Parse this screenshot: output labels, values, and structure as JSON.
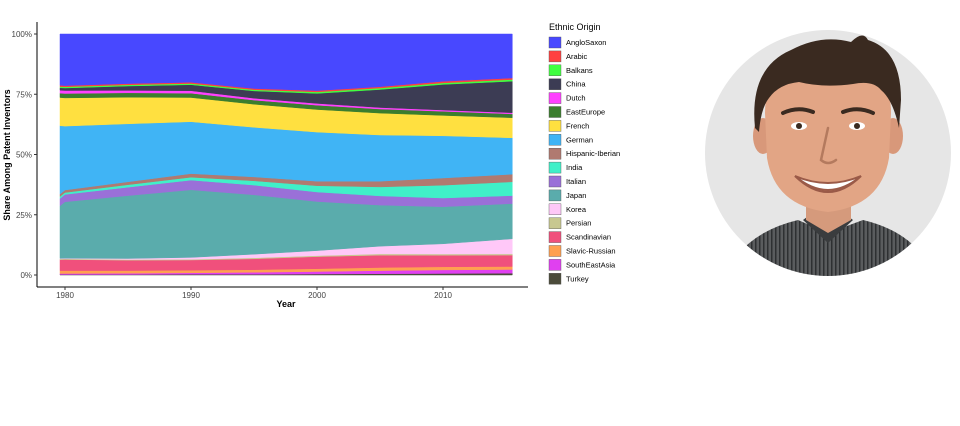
{
  "chart_data": {
    "type": "area",
    "stacked": true,
    "normalized": true,
    "title": "",
    "xlabel": "Year",
    "ylabel": "Share Among Patent Inventors",
    "xlim": [
      1978,
      2016
    ],
    "ylim": [
      0,
      1
    ],
    "x_ticks": [
      1980,
      1990,
      2000,
      2010
    ],
    "x_tick_labels": [
      "1980",
      "1990",
      "2000",
      "2010"
    ],
    "y_ticks": [
      0,
      0.25,
      0.5,
      0.75,
      1.0
    ],
    "y_tick_labels": [
      "0%",
      "25%",
      "50%",
      "75%",
      "100%"
    ],
    "grid": false,
    "legend_title": "Ethnic Origin",
    "legend_position": "right",
    "x": [
      1978,
      1980,
      1985,
      1990,
      1995,
      2000,
      2005,
      2010,
      2015
    ],
    "series": [
      {
        "name": "AngloSaxon",
        "color": "#4848ff",
        "values": [
          0.21,
          0.21,
          0.205,
          0.2,
          0.225,
          0.225,
          0.205,
          0.185,
          0.175
        ]
      },
      {
        "name": "Arabic",
        "color": "#ff4040",
        "values": [
          0.005,
          0.005,
          0.005,
          0.005,
          0.005,
          0.005,
          0.005,
          0.006,
          0.006
        ]
      },
      {
        "name": "Balkans",
        "color": "#40ff40",
        "values": [
          0.005,
          0.005,
          0.005,
          0.005,
          0.005,
          0.006,
          0.006,
          0.006,
          0.007
        ]
      },
      {
        "name": "China",
        "color": "#3c3c54",
        "values": [
          0.01,
          0.01,
          0.018,
          0.025,
          0.03,
          0.04,
          0.07,
          0.1,
          0.125
        ]
      },
      {
        "name": "Dutch",
        "color": "#ff40ff",
        "values": [
          0.012,
          0.012,
          0.01,
          0.01,
          0.008,
          0.007,
          0.006,
          0.005,
          0.005
        ]
      },
      {
        "name": "EastEurope",
        "color": "#3b7d2e",
        "values": [
          0.018,
          0.018,
          0.018,
          0.018,
          0.017,
          0.017,
          0.016,
          0.016,
          0.015
        ]
      },
      {
        "name": "French",
        "color": "#ffe040",
        "values": [
          0.115,
          0.115,
          0.11,
          0.1,
          0.095,
          0.09,
          0.085,
          0.08,
          0.08
        ]
      },
      {
        "name": "German",
        "color": "#40b4f5",
        "values": [
          0.28,
          0.26,
          0.24,
          0.215,
          0.205,
          0.195,
          0.18,
          0.165,
          0.145
        ]
      },
      {
        "name": "Hispanic-Iberian",
        "color": "#b07a70",
        "values": [
          0.01,
          0.01,
          0.012,
          0.015,
          0.016,
          0.018,
          0.022,
          0.028,
          0.03
        ]
      },
      {
        "name": "India",
        "color": "#40f0c8",
        "values": [
          0.008,
          0.008,
          0.01,
          0.012,
          0.018,
          0.025,
          0.035,
          0.05,
          0.055
        ]
      },
      {
        "name": "Italian",
        "color": "#9a70d8",
        "values": [
          0.03,
          0.03,
          0.035,
          0.04,
          0.04,
          0.038,
          0.036,
          0.034,
          0.032
        ]
      },
      {
        "name": "Japan",
        "color": "#5aacac",
        "values": [
          0.215,
          0.23,
          0.26,
          0.28,
          0.245,
          0.195,
          0.16,
          0.145,
          0.14
        ]
      },
      {
        "name": "Korea",
        "color": "#ffc8f8",
        "values": [
          0.002,
          0.002,
          0.004,
          0.008,
          0.015,
          0.02,
          0.03,
          0.04,
          0.06
        ]
      },
      {
        "name": "Persian",
        "color": "#c8c890",
        "values": [
          0.003,
          0.003,
          0.003,
          0.003,
          0.004,
          0.004,
          0.005,
          0.005,
          0.005
        ]
      },
      {
        "name": "Scandinavian",
        "color": "#f0507c",
        "values": [
          0.045,
          0.045,
          0.043,
          0.042,
          0.045,
          0.048,
          0.048,
          0.045,
          0.045
        ]
      },
      {
        "name": "Slavic-Russian",
        "color": "#ffa050",
        "values": [
          0.012,
          0.012,
          0.011,
          0.011,
          0.011,
          0.011,
          0.012,
          0.012,
          0.012
        ]
      },
      {
        "name": "SouthEastAsia",
        "color": "#e040f0",
        "values": [
          0.004,
          0.004,
          0.005,
          0.006,
          0.008,
          0.01,
          0.012,
          0.014,
          0.015
        ]
      },
      {
        "name": "Turkey",
        "color": "#4b4b3a",
        "values": [
          0.002,
          0.002,
          0.002,
          0.003,
          0.003,
          0.004,
          0.005,
          0.006,
          0.007
        ]
      }
    ]
  },
  "photo": {
    "description_icon": "person-portrait-icon",
    "background_color": "#e6e6e6",
    "shirt_color": "#5a5c5e"
  }
}
